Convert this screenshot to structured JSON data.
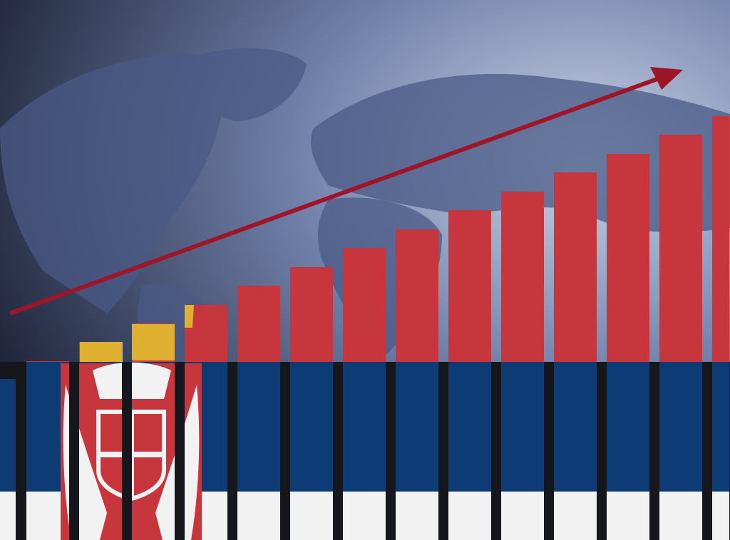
{
  "colors": {
    "background_dark": "#1c2236",
    "background_light": "#c9d3e6",
    "map_land": "#4a5a86",
    "flag_red": "#c6363c",
    "flag_blue": "#0c3b76",
    "flag_white": "#f2f2f2",
    "arrow": "#a01428",
    "gap": "#15171c",
    "coat_gold": "#e0b030"
  },
  "icons": {
    "coat_of_arms": "serbian-coat-of-arms",
    "arrow": "trend-up-arrow"
  }
}
